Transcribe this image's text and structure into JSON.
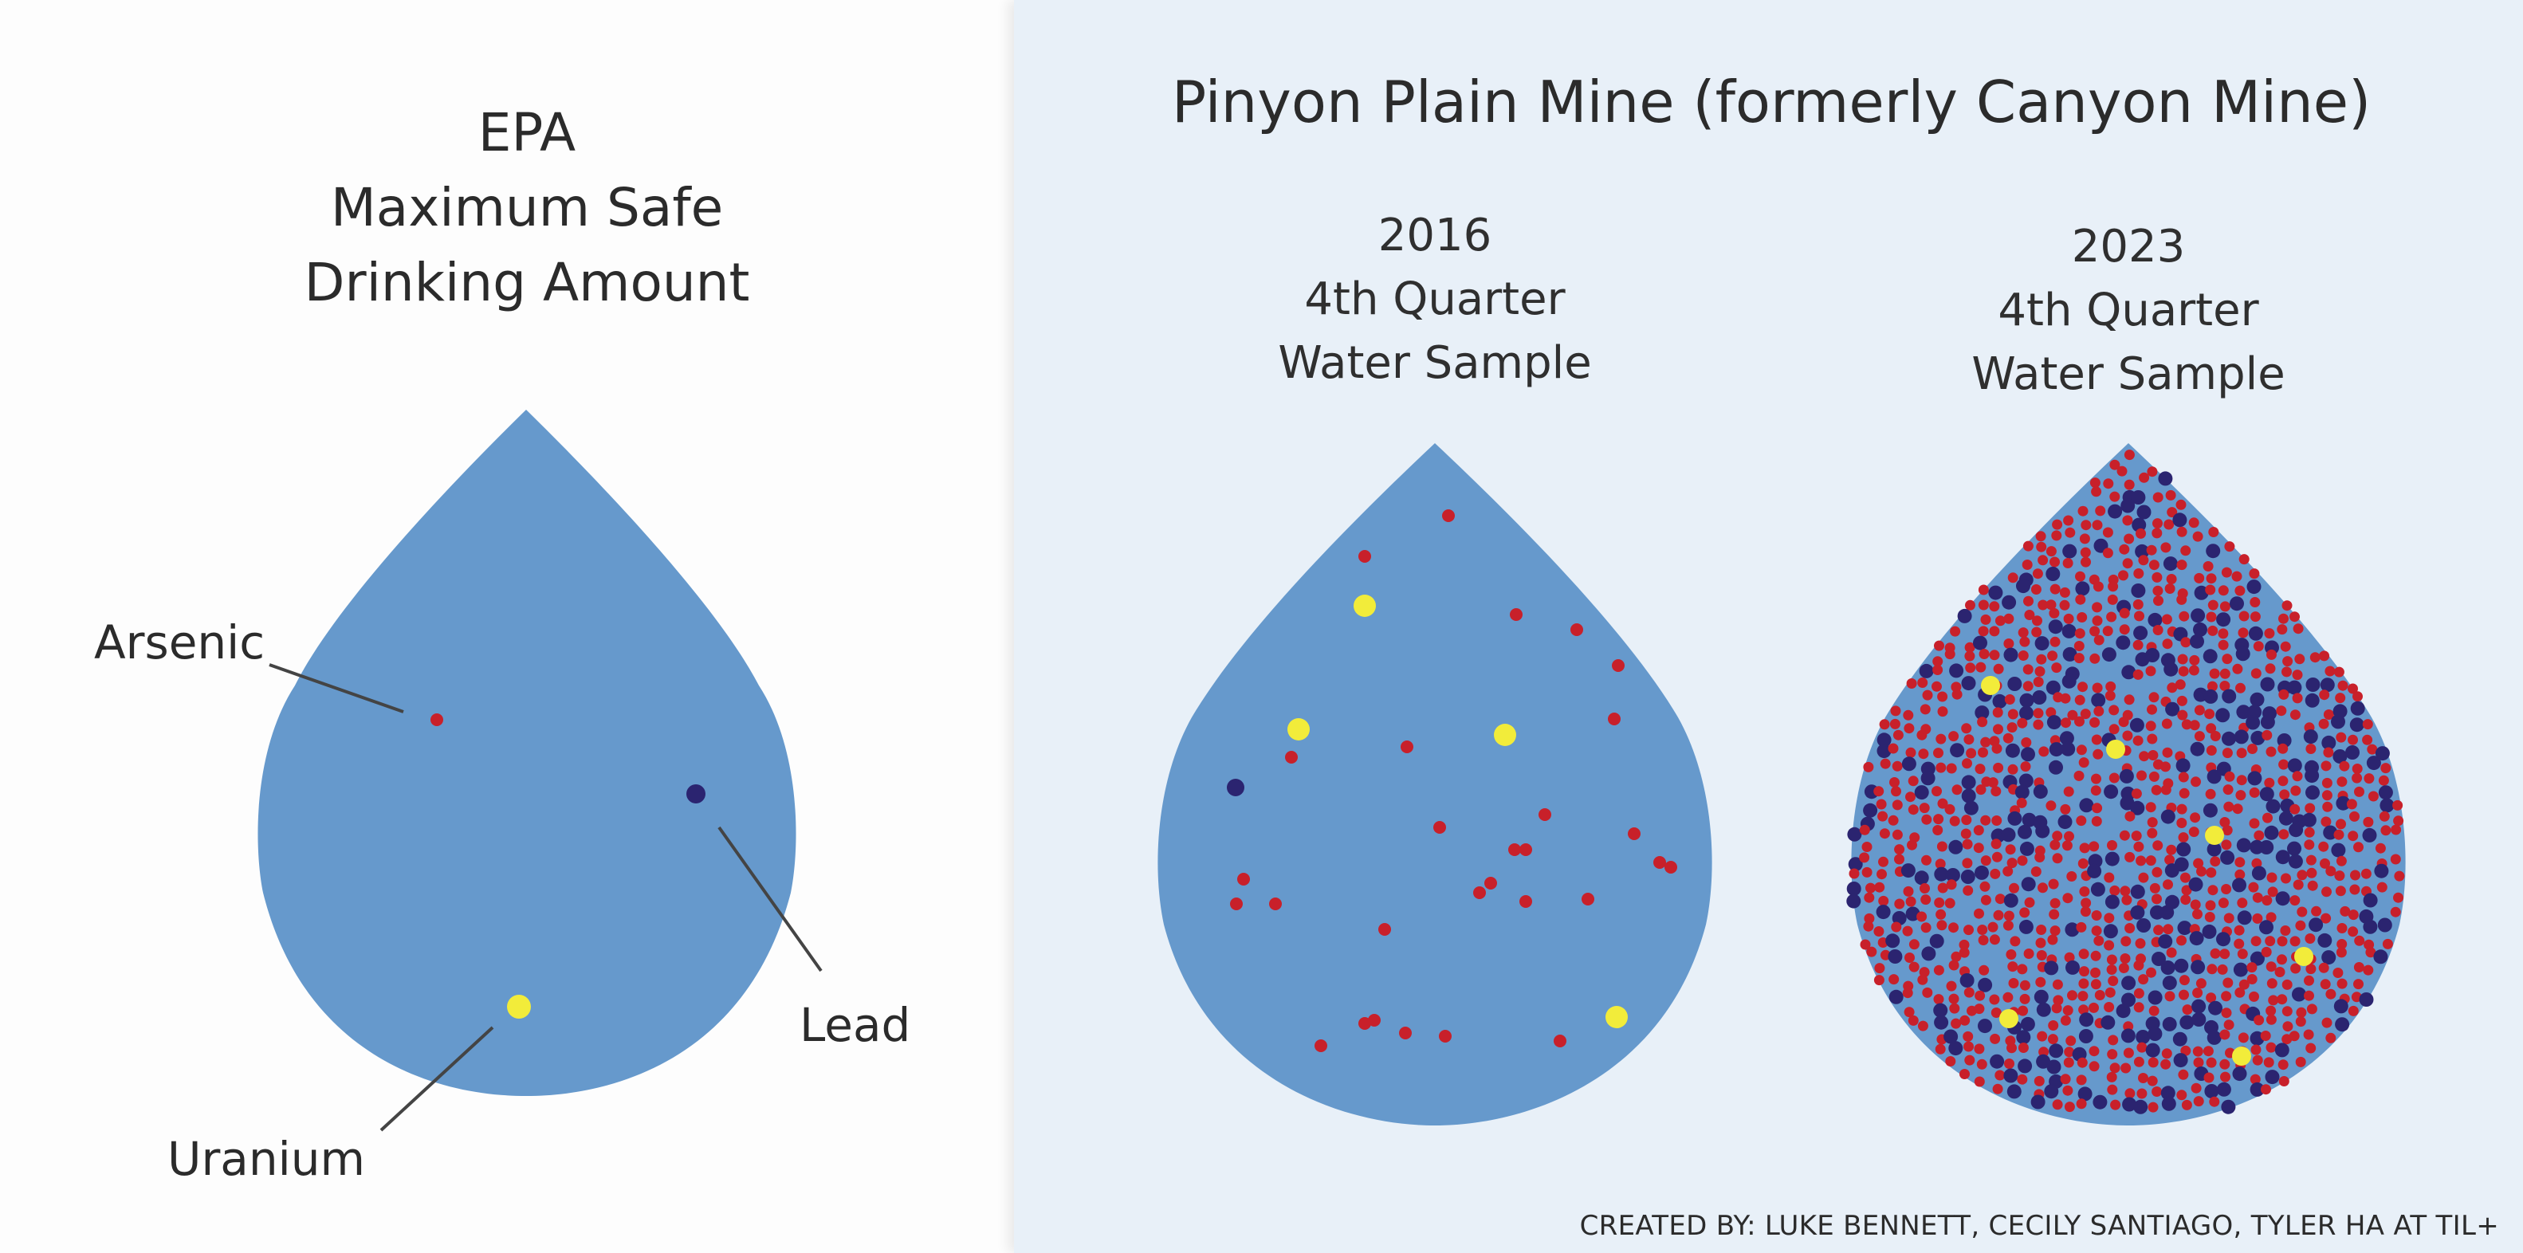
{
  "epa": {
    "title_lines": [
      "EPA",
      "Maximum Safe",
      "Drinking Amount"
    ],
    "labels": {
      "arsenic": "Arsenic",
      "lead": "Lead",
      "uranium": "Uranium"
    }
  },
  "mine": {
    "title": "Pinyon Plain Mine (formerly Canyon Mine)",
    "samples": [
      {
        "year": "2016",
        "quarter": "4th Quarter",
        "caption": "Water Sample"
      },
      {
        "year": "2023",
        "quarter": "4th Quarter",
        "caption": "Water Sample"
      }
    ]
  },
  "credit": "CREATED BY: LUKE BENNETT, CECILY SANTIAGO, TYLER HA AT TIL+",
  "colors": {
    "drop": "#6699cc",
    "arsenic": "#c8202a",
    "lead": "#2b2470",
    "uranium": "#f2ec3a",
    "leader_line": "#444444",
    "right_bg": "#e8f0f8"
  },
  "icons": [
    "water-drop-icon"
  ]
}
